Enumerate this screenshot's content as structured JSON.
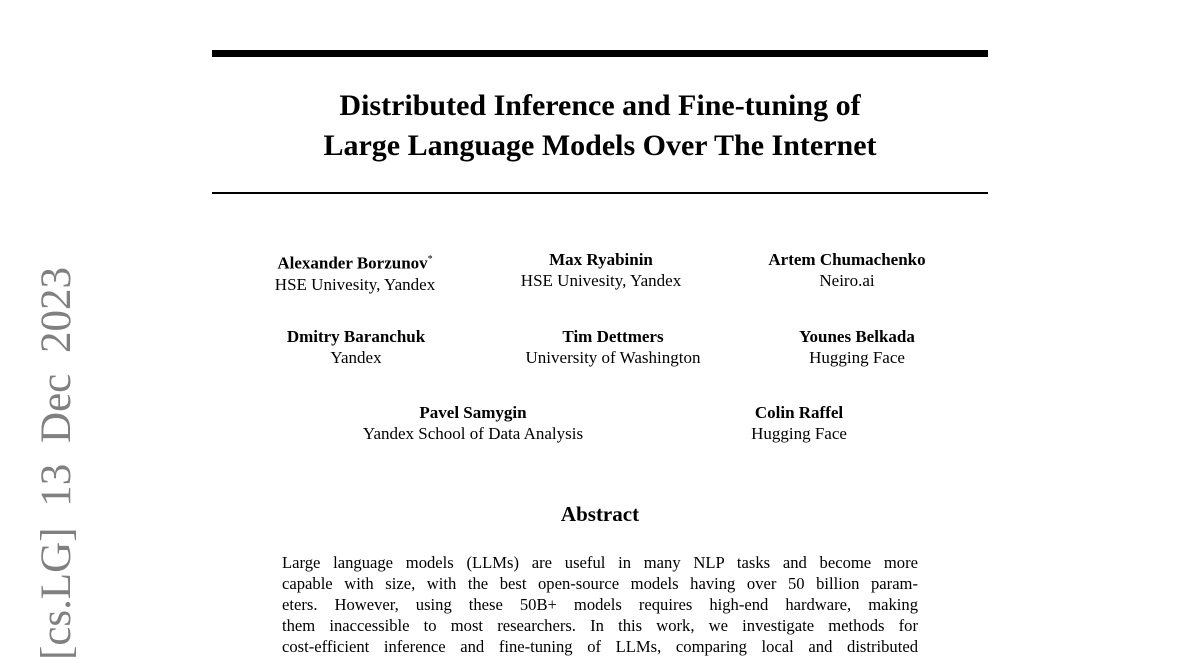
{
  "arxiv_stamp": {
    "category": "[cs.LG]",
    "date": "13 Dec 2023"
  },
  "title_lines": [
    "Distributed Inference and Fine-tuning of",
    "Large Language Models Over The Internet"
  ],
  "authors": [
    {
      "name": "Alexander Borzunov",
      "mark": "*",
      "affiliation": "HSE Univesity, Yandex"
    },
    {
      "name": "Max Ryabinin",
      "affiliation": "HSE Univesity, Yandex"
    },
    {
      "name": "Artem Chumachenko",
      "affiliation": "Neiro.ai"
    },
    {
      "name": "Dmitry Baranchuk",
      "affiliation": "Yandex"
    },
    {
      "name": "Tim Dettmers",
      "affiliation": "University of Washington"
    },
    {
      "name": "Younes Belkada",
      "affiliation": "Hugging Face"
    },
    {
      "name": "Pavel Samygin",
      "affiliation": "Yandex School of Data Analysis"
    },
    {
      "name": "Colin Raffel",
      "affiliation": "Hugging Face"
    }
  ],
  "abstract": {
    "heading": "Abstract",
    "lines": [
      "Large language models (LLMs) are useful in many NLP tasks and become more",
      "capable with size, with the best open-source models having over 50 billion param-",
      "eters.  However, using these 50B+ models requires high-end hardware, making",
      "them inaccessible to most researchers. In this work, we investigate methods for",
      "cost-efficient inference and fine-tuning of LLMs, comparing local and distributed"
    ]
  }
}
